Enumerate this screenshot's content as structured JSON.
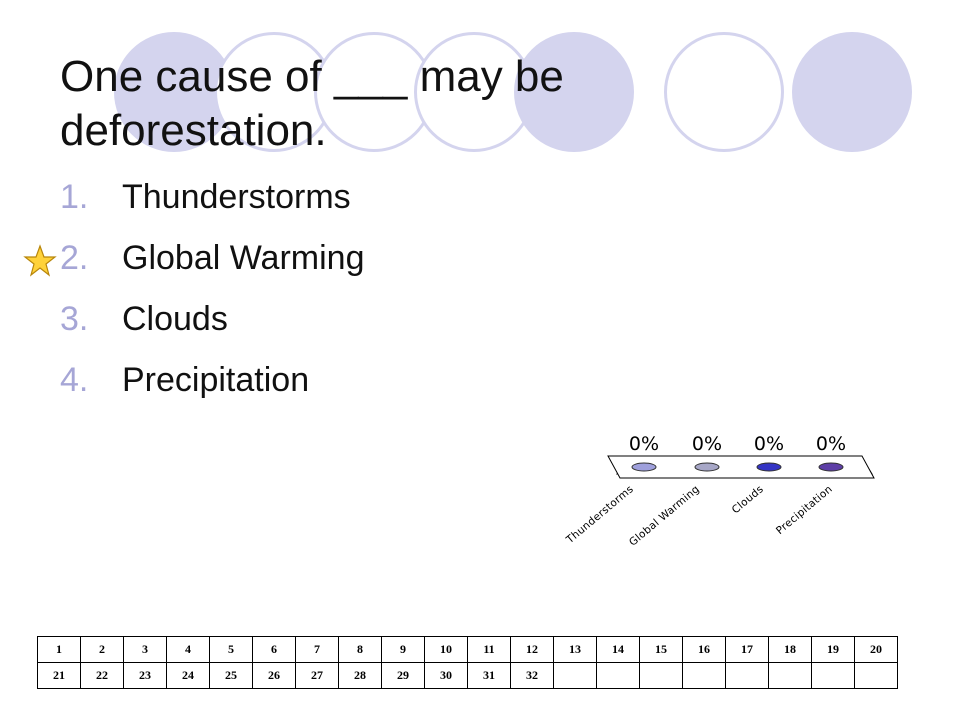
{
  "slide": {
    "title": "One cause of ___ may be deforestation.",
    "options": [
      {
        "num": "1.",
        "label": "Thunderstorms"
      },
      {
        "num": "2.",
        "label": "Global Warming"
      },
      {
        "num": "3.",
        "label": "Clouds"
      },
      {
        "num": "4.",
        "label": "Precipitation"
      }
    ],
    "correct_marker_icon": "star-icon",
    "accent_color": "#a6a6d6",
    "circle_color": "#d4d4ee"
  },
  "chart_data": {
    "type": "bar",
    "categories": [
      "Thunderstorms",
      "Global Warming",
      "Clouds",
      "Precipitation"
    ],
    "values": [
      0,
      0,
      0,
      0
    ],
    "value_labels": [
      "0%",
      "0%",
      "0%",
      "0%"
    ],
    "colors": [
      "#9fa0dc",
      "#a7a7c7",
      "#3434c4",
      "#5d3ea6"
    ]
  },
  "response_grid": {
    "rows": [
      [
        "1",
        "2",
        "3",
        "4",
        "5",
        "6",
        "7",
        "8",
        "9",
        "10",
        "11",
        "12",
        "13",
        "14",
        "15",
        "16",
        "17",
        "18",
        "19",
        "20"
      ],
      [
        "21",
        "22",
        "23",
        "24",
        "25",
        "26",
        "27",
        "28",
        "29",
        "30",
        "31",
        "32",
        "",
        "",
        "",
        "",
        "",
        "",
        "",
        ""
      ]
    ]
  }
}
